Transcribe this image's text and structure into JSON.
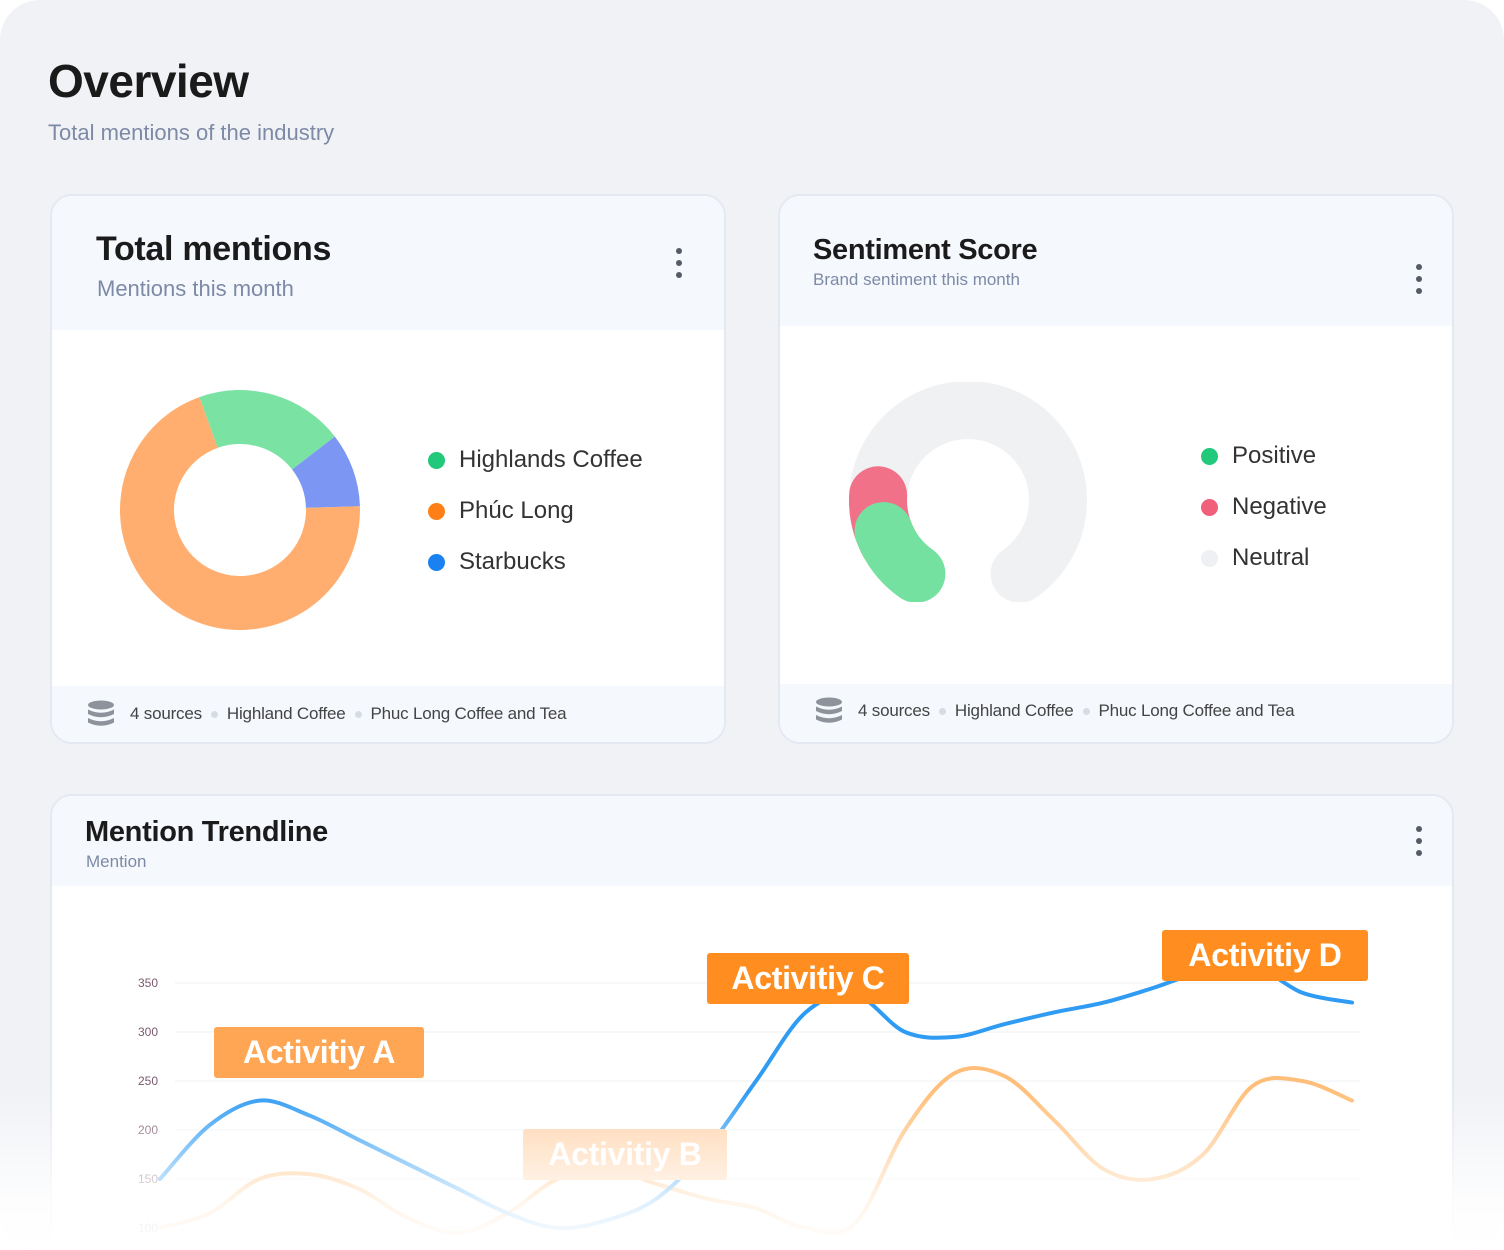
{
  "page": {
    "title": "Overview",
    "subtitle": "Total mentions of the industry"
  },
  "total_mentions": {
    "title": "Total mentions",
    "subtitle": "Mentions this month",
    "legend": [
      {
        "label": "Highlands Coffee",
        "color": "#22c97a"
      },
      {
        "label": "Phúc Long",
        "color": "#ff7f16"
      },
      {
        "label": "Starbucks",
        "color": "#1a82f0"
      }
    ],
    "footer": {
      "sources": "4 sources",
      "brand_a": "Highland Coffee",
      "brand_b": "Phuc Long Coffee and Tea"
    }
  },
  "sentiment": {
    "title": "Sentiment Score",
    "subtitle": "Brand sentiment this month",
    "legend": [
      {
        "label": "Positive",
        "color": "#22c97a"
      },
      {
        "label": "Negative",
        "color": "#f0607a"
      },
      {
        "label": "Neutral",
        "color": "#eef0f3"
      }
    ],
    "footer": {
      "sources": "4 sources",
      "brand_a": "Highland Coffee",
      "brand_b": "Phuc Long Coffee and Tea"
    }
  },
  "trendline": {
    "title": "Mention Trendline",
    "subtitle": "Mention",
    "activities": [
      "Activitiy A",
      "Activitiy B",
      "Activitiy C",
      "Activitiy D"
    ]
  },
  "chart_data": [
    {
      "type": "pie",
      "variant": "donut",
      "categories": [
        "Highlands Coffee",
        "Starbucks",
        "Phúc Long"
      ],
      "values": [
        20,
        10,
        70
      ],
      "colors": [
        "#7ae3a3",
        "#7b97f3",
        "#ffae70"
      ]
    },
    {
      "type": "pie",
      "variant": "gauge",
      "categories": [
        "Positive",
        "Negative",
        "Neutral"
      ],
      "values": [
        12,
        8,
        80
      ],
      "colors": [
        "#74e1a1",
        "#f17189",
        "#f0f1f3"
      ]
    },
    {
      "type": "line",
      "x": [
        0,
        1,
        2,
        3,
        4,
        5,
        6,
        7,
        8,
        9,
        10,
        11,
        12,
        13,
        14,
        15,
        16,
        17,
        18,
        19,
        20,
        21,
        22,
        23,
        24
      ],
      "yticks": [
        100,
        150,
        200,
        250,
        300,
        350
      ],
      "ylim": [
        100,
        350
      ],
      "grid": true,
      "series": [
        {
          "color": "#2f9bf2",
          "values": [
            150,
            205,
            230,
            215,
            190,
            165,
            140,
            115,
            100,
            108,
            130,
            180,
            250,
            320,
            338,
            300,
            295,
            308,
            320,
            330,
            345,
            362,
            368,
            340,
            330
          ]
        },
        {
          "color": "#ffbf7a",
          "values": [
            100,
            115,
            150,
            155,
            140,
            110,
            95,
            115,
            150,
            160,
            145,
            130,
            120,
            100,
            105,
            200,
            258,
            255,
            210,
            160,
            150,
            175,
            245,
            250,
            230
          ]
        }
      ]
    }
  ]
}
